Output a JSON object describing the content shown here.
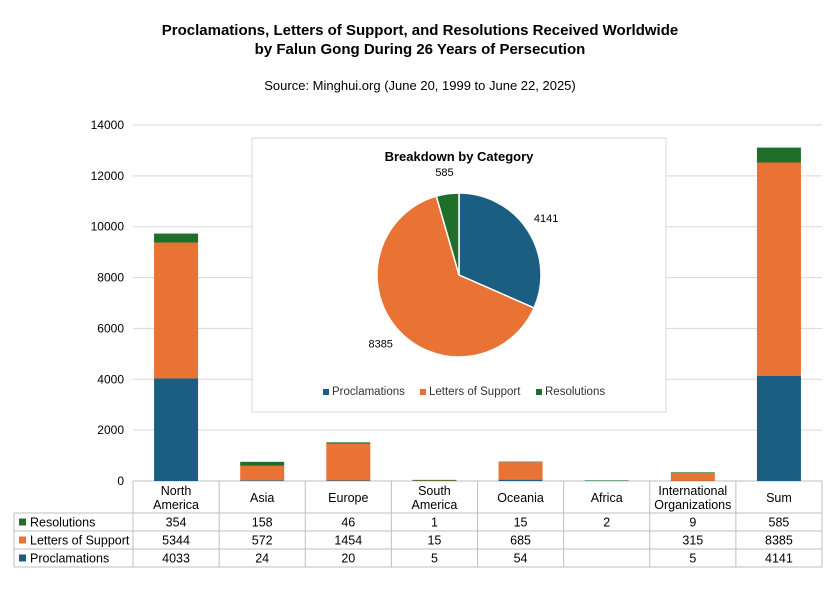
{
  "title_line1": "Proclamations, Letters of Support, and Resolutions Received Worldwide",
  "title_line2": "by Falun Gong During 26 Years of Persecution",
  "subtitle": "Source: Minghui.org (June 20, 1999 to June 22, 2025)",
  "colors": {
    "proclamations": "#1a5e82",
    "letters": "#e87334",
    "resolutions": "#1f6e2a",
    "grid": "#d9d9d9",
    "axis": "#bfbfbf"
  },
  "chart_data": [
    {
      "type": "bar",
      "stacked": true,
      "categories": [
        [
          "North",
          "America"
        ],
        [
          "Asia"
        ],
        [
          "Europe"
        ],
        [
          "South",
          "America"
        ],
        [
          "Oceania"
        ],
        [
          "Africa"
        ],
        [
          "International",
          "Organizations"
        ],
        [
          "Sum"
        ]
      ],
      "series": [
        {
          "name": "Proclamations",
          "key": "proclamations",
          "values": [
            4033,
            24,
            20,
            5,
            54,
            null,
            5,
            4141
          ]
        },
        {
          "name": "Letters of Support",
          "key": "letters",
          "values": [
            5344,
            572,
            1454,
            15,
            685,
            null,
            315,
            8385
          ]
        },
        {
          "name": "Resolutions",
          "key": "resolutions",
          "values": [
            354,
            158,
            46,
            1,
            15,
            2,
            9,
            585
          ]
        }
      ],
      "table_row_order": [
        "Resolutions",
        "Letters of Support",
        "Proclamations"
      ],
      "ylim": [
        0,
        14000
      ],
      "yticks": [
        0,
        2000,
        4000,
        6000,
        8000,
        10000,
        12000,
        14000
      ],
      "data_table": true,
      "grid": true
    },
    {
      "type": "pie",
      "title": "Breakdown by Category",
      "slices": [
        {
          "name": "Proclamations",
          "key": "proclamations",
          "value": 4141
        },
        {
          "name": "Letters of Support",
          "key": "letters",
          "value": 8385
        },
        {
          "name": "Resolutions",
          "key": "resolutions",
          "value": 585
        }
      ],
      "legend": [
        "Proclamations",
        "Letters of Support",
        "Resolutions"
      ],
      "legend_position": "bottom"
    }
  ]
}
